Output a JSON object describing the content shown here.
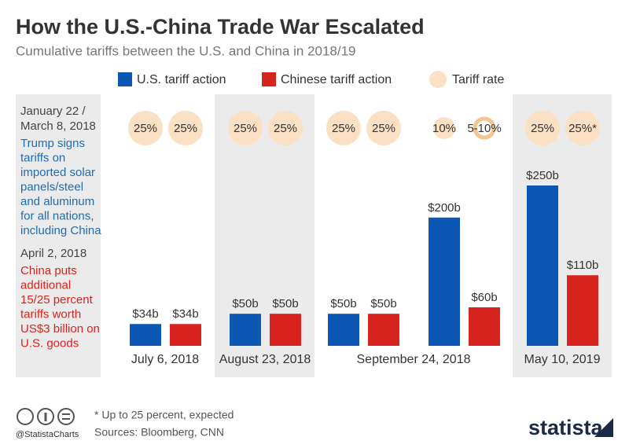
{
  "chart_data": {
    "type": "bar",
    "title": "How the U.S.-China Trade War Escalated",
    "subtitle": "Cumulative tariffs between the U.S. and China in 2018/19",
    "categories": [
      "July 6, 2018",
      "August 23, 2018",
      "September 24, 2018",
      null,
      "May 10, 2019"
    ],
    "series": [
      {
        "name": "U.S. tariff action",
        "color": "#0b57b3",
        "values": [
          34,
          50,
          50,
          200,
          250
        ],
        "value_labels": [
          "$34b",
          "$50b",
          "$50b",
          "$200b",
          "$250b"
        ],
        "rates": [
          25,
          25,
          25,
          10,
          25
        ],
        "rate_labels": [
          "25%",
          "25%",
          "25%",
          "10%",
          "25%"
        ]
      },
      {
        "name": "Chinese tariff action",
        "color": "#d7231d",
        "values": [
          34,
          50,
          50,
          60,
          110
        ],
        "value_labels": [
          "$34b",
          "$50b",
          "$50b",
          "$60b",
          "$110b"
        ],
        "rates": [
          25,
          25,
          25,
          null,
          25
        ],
        "rate_labels": [
          "25%",
          "25%",
          "25%",
          "5-10%",
          "25%*"
        ]
      }
    ],
    "rate_legend": {
      "name": "Tariff rate",
      "color": "#fbe0c4"
    },
    "annotations": [
      {
        "date": [
          "January 22 /",
          "March 8, 2018"
        ],
        "color": "#1f6cb0",
        "text": [
          "Trump signs",
          "tariffs on",
          "imported solar",
          "panels/steel",
          "and aluminum",
          "for all nations,",
          "including China"
        ]
      },
      {
        "date": [
          "April 2, 2018"
        ],
        "color": "#d7231d",
        "text": [
          "China puts",
          "additional",
          "15/25 percent",
          "tariffs worth",
          "US$3 billion on",
          "U.S. goods"
        ]
      }
    ],
    "note": "* Up to 25 percent, expected",
    "source": "Sources: Bloomberg, CNN",
    "credit": "@StatistaCharts",
    "brand": "statista"
  }
}
